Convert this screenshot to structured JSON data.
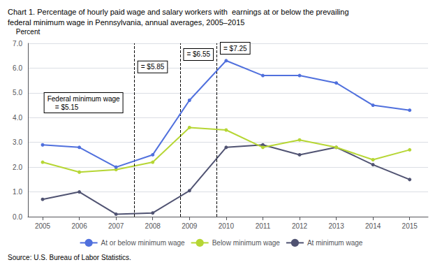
{
  "chart_data": {
    "type": "line",
    "title": "Chart 1. Percentage of hourly paid wage and salary workers with  earnings at or below the prevailing\nfederal minimum wage in Pennsylvania, annual averages, 2005–2015",
    "ylabel": "Percent",
    "source": "Source: U.S. Bureau of Labor Statistics.",
    "x": [
      2005,
      2006,
      2007,
      2008,
      2009,
      2010,
      2011,
      2012,
      2013,
      2014,
      2015
    ],
    "series": [
      {
        "name": "At or below minimum wage",
        "values": [
          2.9,
          2.8,
          2.0,
          2.5,
          4.7,
          6.3,
          5.7,
          5.7,
          5.4,
          4.5,
          4.3
        ]
      },
      {
        "name": "Below minimum wage",
        "values": [
          2.2,
          1.8,
          1.9,
          2.2,
          3.6,
          3.5,
          2.8,
          3.1,
          2.8,
          2.3,
          2.7
        ]
      },
      {
        "name": "At minimum wage",
        "values": [
          0.7,
          1.0,
          0.1,
          0.15,
          1.05,
          2.8,
          2.9,
          2.5,
          2.8,
          2.1,
          1.5
        ]
      }
    ],
    "xlim": [
      2004.6,
      2015.5
    ],
    "xticks": [
      2005,
      2006,
      2007,
      2008,
      2009,
      2010,
      2011,
      2012,
      2013,
      2014,
      2015
    ],
    "ylim": [
      0.0,
      7.0
    ],
    "yticks": [
      {
        "value": 0,
        "label": "0.0"
      },
      {
        "value": 1,
        "label": "1.0"
      },
      {
        "value": 2,
        "label": "2.0"
      },
      {
        "value": 3,
        "label": "3.0"
      },
      {
        "value": 4,
        "label": "4.0"
      },
      {
        "value": 5,
        "label": "5.0"
      },
      {
        "value": 6,
        "label": "6.0"
      },
      {
        "value": 7,
        "label": "7.0"
      }
    ],
    "vlines": [
      2007.5,
      2008.75,
      2009.75
    ],
    "annotations": [
      {
        "x": 2007.6,
        "y": 6.05,
        "text": "= $5.85"
      },
      {
        "x": 2008.85,
        "y": 6.55,
        "text": "= $6.55"
      },
      {
        "x": 2009.85,
        "y": 6.8,
        "text": "= $7.25"
      },
      {
        "x": 2005.05,
        "y": 4.6,
        "text": "Federal minimum wage\n    = $5.15"
      }
    ],
    "grid": true,
    "legend": "bottom",
    "marker": "circle",
    "line_style": "solid"
  }
}
